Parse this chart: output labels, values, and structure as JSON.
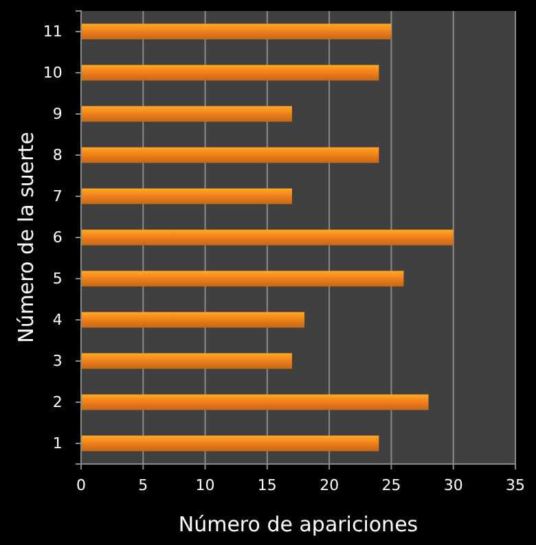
{
  "chart_data": {
    "type": "bar",
    "orientation": "horizontal",
    "xlabel": "Número de apariciones",
    "ylabel": "Número de la suerte",
    "categories": [
      "11",
      "10",
      "9",
      "8",
      "7",
      "6",
      "5",
      "4",
      "3",
      "2",
      "1"
    ],
    "values": [
      25,
      24,
      17,
      24,
      17,
      30,
      26,
      18,
      17,
      28,
      24
    ],
    "color": "#f07f1a",
    "xlim": [
      0,
      35
    ],
    "xticks": [
      0,
      5,
      10,
      15,
      20,
      25,
      30,
      35
    ],
    "grid": "x"
  }
}
